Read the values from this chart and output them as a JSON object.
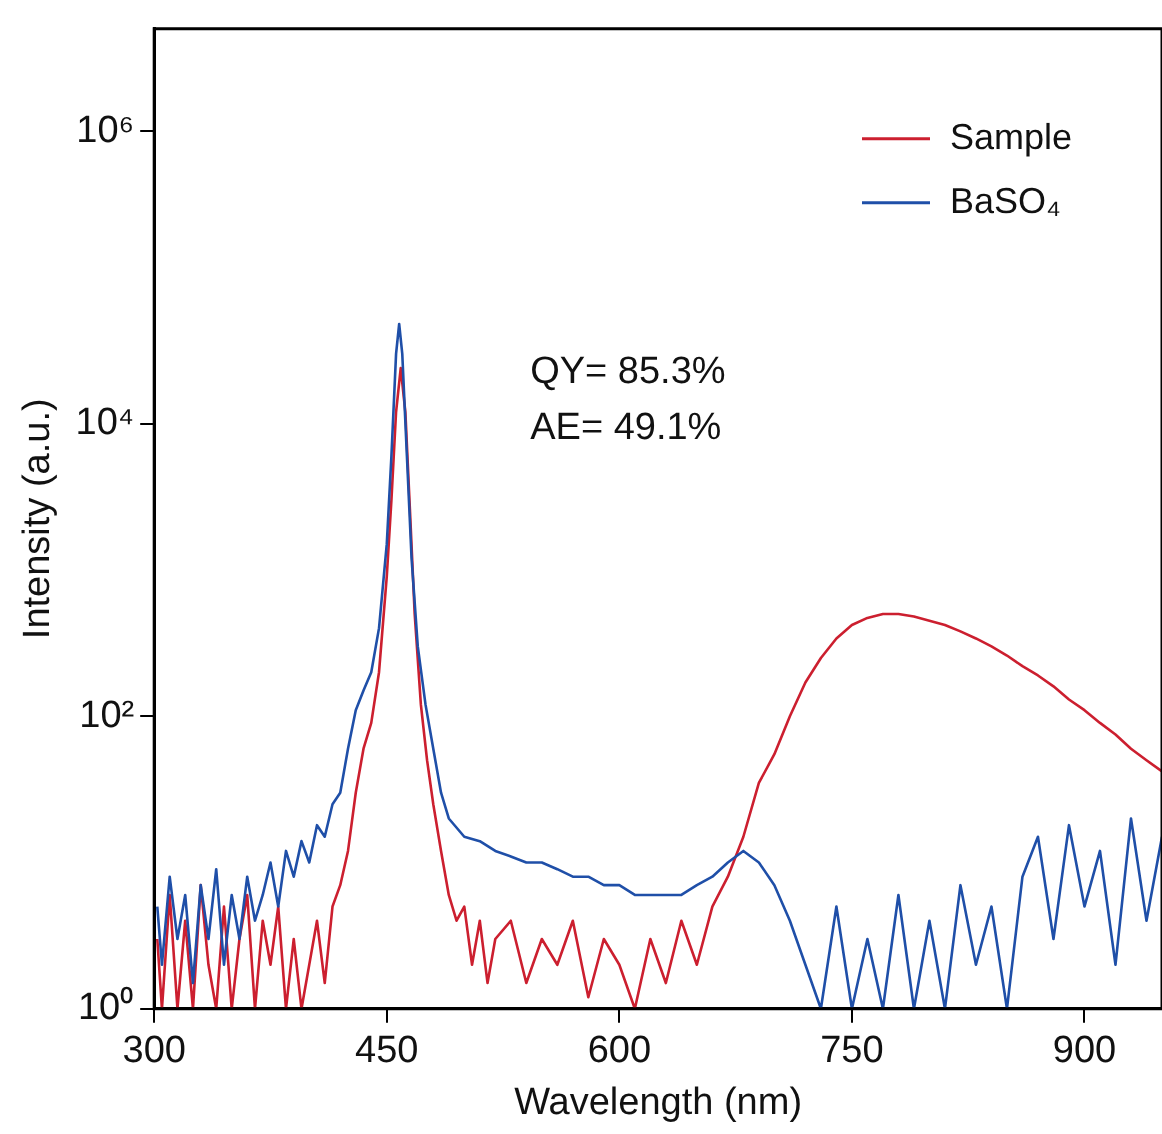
{
  "chart_data": {
    "type": "line",
    "xlabel": "Wavelength (nm)",
    "ylabel": "Intensity (a.u.)",
    "log": "y",
    "legend": "top right",
    "marker": "none",
    "line_style": "solid",
    "xlim": [
      300,
      950
    ],
    "xticks": [
      300,
      450,
      600,
      750,
      900
    ],
    "ylim": [
      1,
      5000000
    ],
    "yticks": [
      {
        "value": 1,
        "label": "10⁰"
      },
      {
        "value": 100,
        "label": "10²"
      },
      {
        "value": 10000,
        "label": "10⁴"
      },
      {
        "value": 1000000,
        "label": "10⁶"
      }
    ],
    "annotations": [
      "QY= 85.3%",
      "AE= 49.1%"
    ],
    "series": [
      {
        "name": "BaSO₄",
        "color": "#1f4fa8",
        "x": [
          302,
          305,
          310,
          315,
          320,
          325,
          330,
          335,
          340,
          345,
          350,
          355,
          360,
          365,
          370,
          375,
          380,
          385,
          390,
          395,
          400,
          405,
          410,
          415,
          420,
          425,
          430,
          435,
          440,
          445,
          450,
          453,
          456,
          458,
          460,
          463,
          466,
          470,
          475,
          480,
          485,
          490,
          500,
          510,
          520,
          530,
          540,
          550,
          560,
          570,
          580,
          590,
          600,
          610,
          620,
          630,
          640,
          650,
          660,
          670,
          680,
          690,
          700,
          710,
          720,
          730,
          740,
          750,
          760,
          770,
          780,
          790,
          800,
          810,
          820,
          830,
          840,
          850,
          860,
          870,
          880,
          890,
          900,
          910,
          920,
          930,
          940,
          950
        ],
        "values": [
          5,
          2,
          8,
          3,
          6,
          1.5,
          7,
          3,
          9,
          2,
          6,
          3,
          8,
          4,
          6,
          10,
          5,
          12,
          8,
          14,
          10,
          18,
          15,
          25,
          30,
          60,
          110,
          150,
          200,
          400,
          1500,
          6000,
          30000,
          48000,
          30000,
          6000,
          1200,
          300,
          120,
          60,
          30,
          20,
          15,
          14,
          12,
          11,
          10,
          10,
          9,
          8,
          8,
          7,
          7,
          6,
          6,
          6,
          6,
          7,
          8,
          10,
          12,
          10,
          7,
          4,
          2,
          1,
          5,
          1,
          3,
          1,
          6,
          1,
          4,
          1,
          7,
          2,
          5,
          1,
          8,
          15,
          3,
          18,
          5,
          12,
          2,
          20,
          4,
          15
        ]
      },
      {
        "name": "Sample",
        "color": "#cc1f2f",
        "x": [
          302,
          305,
          310,
          315,
          320,
          325,
          330,
          335,
          340,
          345,
          350,
          355,
          360,
          365,
          370,
          375,
          380,
          385,
          390,
          395,
          400,
          405,
          410,
          415,
          420,
          425,
          430,
          435,
          440,
          445,
          450,
          453,
          456,
          459,
          462,
          465,
          468,
          472,
          476,
          480,
          485,
          490,
          495,
          500,
          505,
          510,
          515,
          520,
          530,
          540,
          550,
          560,
          570,
          580,
          590,
          600,
          610,
          620,
          630,
          640,
          650,
          660,
          670,
          680,
          690,
          700,
          710,
          720,
          730,
          740,
          750,
          760,
          770,
          780,
          790,
          800,
          810,
          820,
          830,
          840,
          850,
          860,
          870,
          880,
          890,
          900,
          910,
          920,
          930,
          940,
          950
        ],
        "values": [
          3,
          1,
          6,
          1,
          4,
          1,
          7,
          2,
          1,
          5,
          1,
          3,
          6,
          1,
          4,
          2,
          5,
          1,
          3,
          1,
          2,
          4,
          1.5,
          5,
          7,
          12,
          30,
          60,
          90,
          200,
          900,
          3000,
          12000,
          24000,
          12000,
          2500,
          500,
          120,
          50,
          25,
          12,
          6,
          4,
          5,
          2,
          4,
          1.5,
          3,
          4,
          1.5,
          3,
          2,
          4,
          1.2,
          3,
          2,
          1,
          3,
          1.5,
          4,
          2,
          5,
          8,
          15,
          35,
          55,
          100,
          170,
          250,
          340,
          420,
          470,
          500,
          500,
          480,
          450,
          420,
          380,
          340,
          300,
          260,
          220,
          190,
          160,
          130,
          110,
          90,
          75,
          60,
          50,
          42
        ]
      }
    ]
  }
}
